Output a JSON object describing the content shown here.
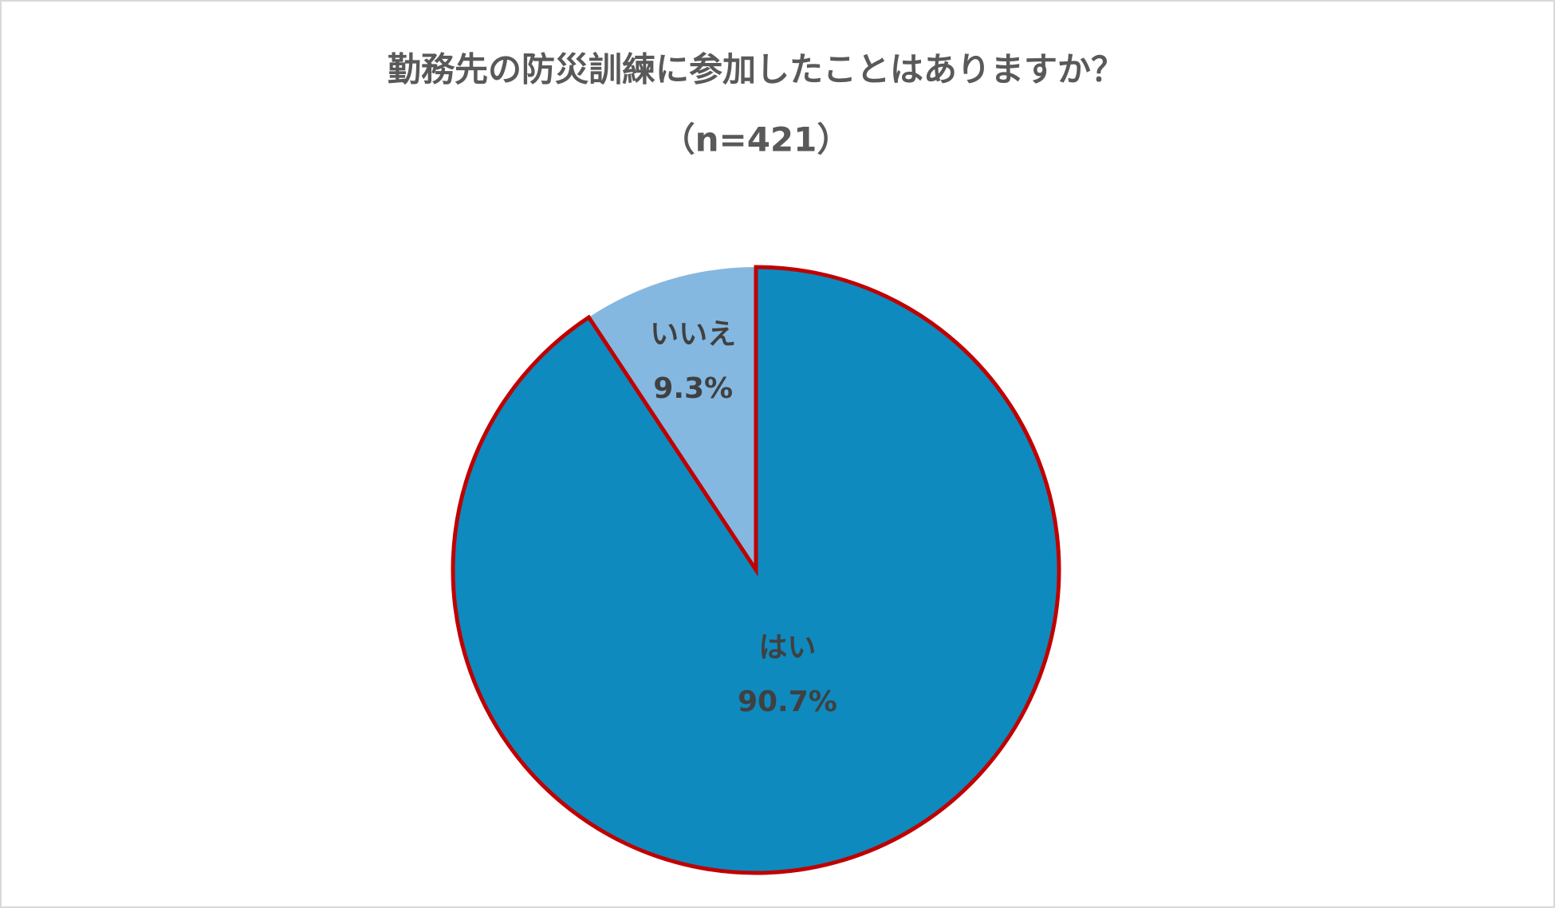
{
  "chart_data": {
    "type": "pie",
    "title": "勤務先の防災訓練に参加したことはありますか？",
    "subtitle": "（n=421）",
    "categories": [
      "はい",
      "いいえ"
    ],
    "values": [
      90.7,
      9.3
    ],
    "value_labels": [
      "90.7%",
      "9.3%"
    ],
    "colors": [
      "#0e8abe",
      "#85b8e0"
    ],
    "edgecolors": [
      "#c00000",
      "none"
    ],
    "start_angle": 90,
    "direction": "clockwise"
  }
}
